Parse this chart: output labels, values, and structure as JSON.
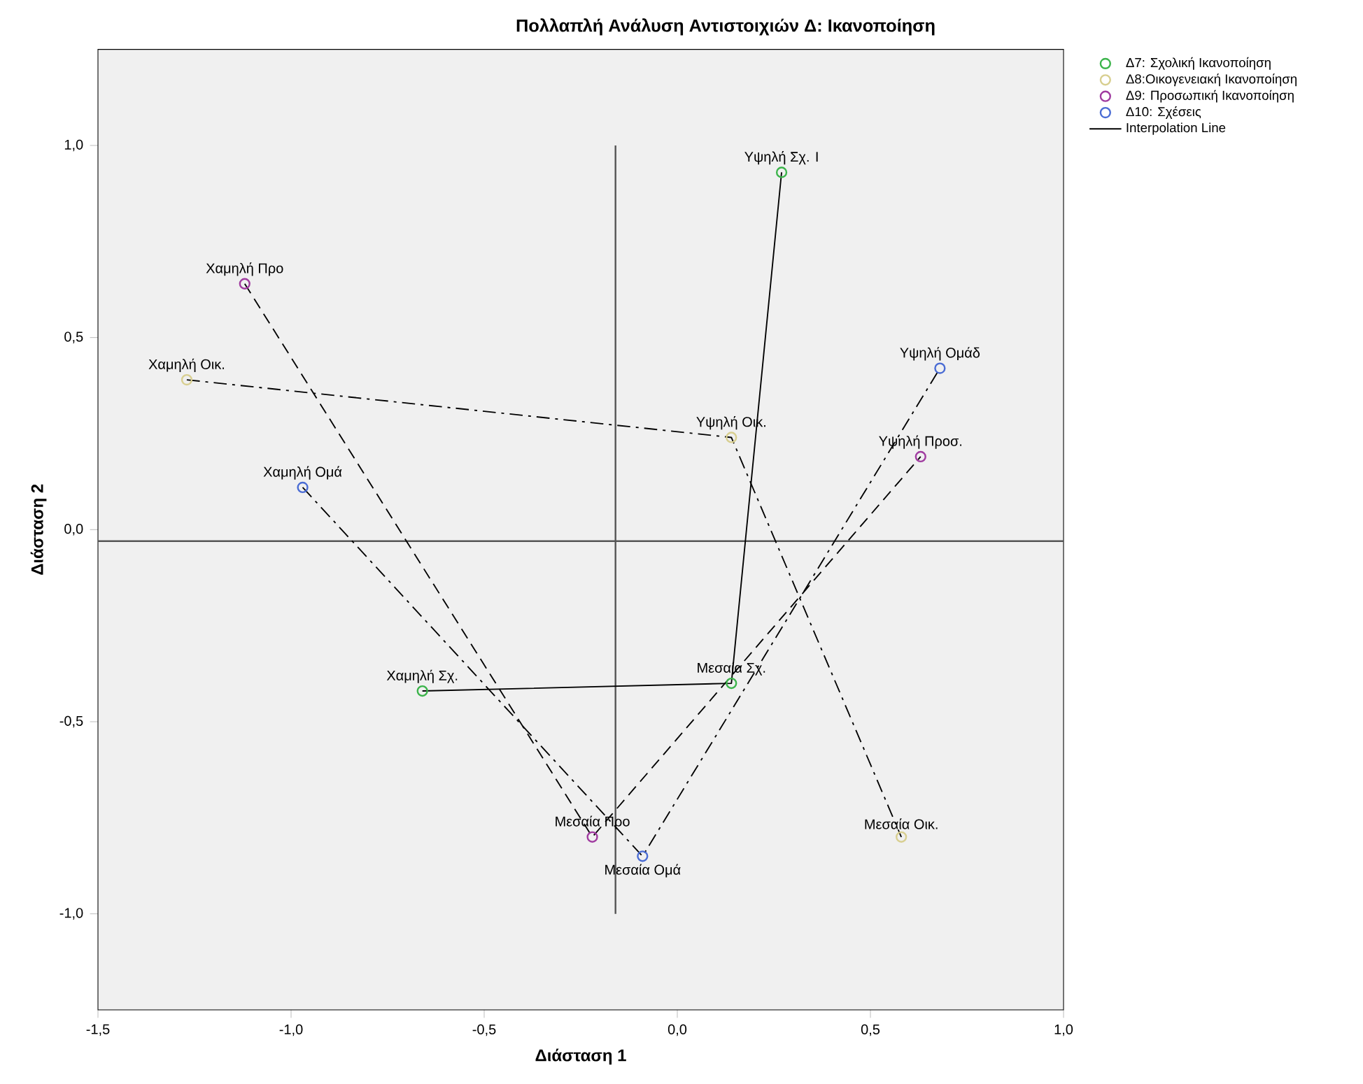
{
  "chart_data": {
    "type": "line",
    "title": "Πολλαπλή Ανάλυση Αντιστοιχιών Δ: Ικανοποίηση",
    "xlabel": "Διάσταση 1",
    "ylabel": "Διάσταση 2",
    "xlim": [
      -1.5,
      1.0
    ],
    "ylim": [
      -1.25,
      1.25
    ],
    "xticks": [
      {
        "value": -1.5,
        "label": "-1,5"
      },
      {
        "value": -1.0,
        "label": "-1,0"
      },
      {
        "value": -0.5,
        "label": "-0,5"
      },
      {
        "value": 0.0,
        "label": "0,0"
      },
      {
        "value": 0.5,
        "label": "0,5"
      },
      {
        "value": 1.0,
        "label": "1,0"
      }
    ],
    "yticks": [
      {
        "value": -1.0,
        "label": "-1,0"
      },
      {
        "value": -0.5,
        "label": "-0,5"
      },
      {
        "value": 0.0,
        "label": "0,0"
      },
      {
        "value": 0.5,
        "label": "0,5"
      },
      {
        "value": 1.0,
        "label": "1,0"
      }
    ],
    "marker": "circle",
    "legend": "top right",
    "annotations": [
      "Interpolation Line"
    ],
    "ref_lines": [
      {
        "axis": "y",
        "value": -0.03,
        "color": "#555555"
      },
      {
        "axis": "x",
        "value": -0.16,
        "color": "#555555"
      }
    ],
    "series": [
      {
        "name": "Δ7: Σχολική Ικανοποίηση",
        "color": "#3cb44b",
        "line_style": "solid",
        "x": [
          -0.66,
          0.14,
          0.27
        ],
        "values": [
          -0.42,
          -0.4,
          0.93
        ],
        "value_labels": [
          "Χαμηλή Σχ.",
          "Μεσαία Σχ.",
          "Υψηλή Σχ. I"
        ]
      },
      {
        "name": "Δ8:Οικογενειακή Ικανοποίηση",
        "color": "#d8cf90",
        "line_style": "dashdot",
        "x": [
          -1.27,
          0.14,
          0.58
        ],
        "values": [
          0.39,
          0.24,
          -0.8
        ],
        "value_labels": [
          "Χαμηλή Οικ.",
          "Υψηλή Οικ.",
          "Μεσαία Οικ."
        ]
      },
      {
        "name": "Δ9: Προσωπική Ικανοποίηση",
        "color": "#a03ca0",
        "line_style": "dashed",
        "x": [
          -1.12,
          -0.22,
          0.63
        ],
        "values": [
          0.64,
          -0.8,
          0.19
        ],
        "value_labels": [
          "Χαμηλή Προ",
          "Μεσαία Προ",
          "Υψηλή Προσ."
        ]
      },
      {
        "name": "Δ10: Σχέσεις",
        "color": "#4a6cd4",
        "line_style": "dashdot",
        "x": [
          -0.97,
          -0.09,
          0.68
        ],
        "values": [
          0.11,
          -0.85,
          0.42
        ],
        "value_labels": [
          "Χαμηλή Ομά",
          "Μεσαία Ομά",
          "Υψηλή Ομάδ"
        ]
      }
    ]
  }
}
